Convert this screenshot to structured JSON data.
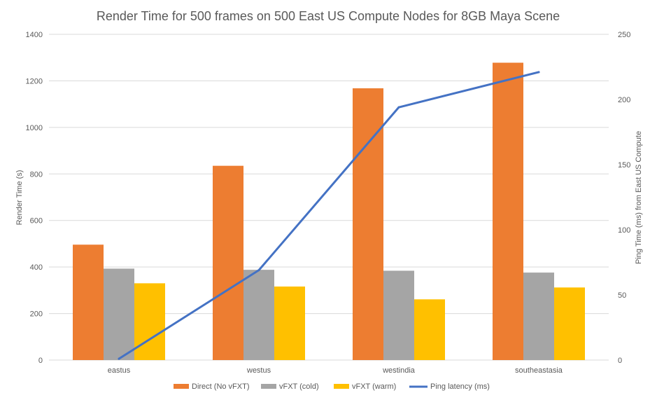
{
  "chart_data": {
    "type": "bar",
    "title": "Render Time for 500 frames on 500 East US Compute Nodes for 8GB Maya Scene",
    "xlabel": "",
    "ylabel": "Render Time (s)",
    "y2label": "Ping Time (ms) from East US Compute",
    "categories": [
      "eastus",
      "westus",
      "westindia",
      "southeastasia"
    ],
    "ylim": [
      0,
      1400
    ],
    "y2lim": [
      0,
      250
    ],
    "yticks": [
      "0",
      "200",
      "400",
      "600",
      "800",
      "1000",
      "1200",
      "1400"
    ],
    "y2ticks": [
      "0",
      "50",
      "100",
      "150",
      "200",
      "250"
    ],
    "grid": true,
    "legend_position": "bottom",
    "series": [
      {
        "name": "Direct (No vFXT)",
        "kind": "bar",
        "axis": "left",
        "color": "#ed7d31",
        "values": [
          496,
          835,
          1168,
          1278
        ]
      },
      {
        "name": "vFXT (cold)",
        "kind": "bar",
        "axis": "left",
        "color": "#a5a5a5",
        "values": [
          393,
          388,
          384,
          376
        ]
      },
      {
        "name": "vFXT (warm)",
        "kind": "bar",
        "axis": "left",
        "color": "#ffc000",
        "values": [
          330,
          316,
          261,
          312
        ]
      },
      {
        "name": "Ping latency (ms)",
        "kind": "line",
        "axis": "right",
        "color": "#4472c4",
        "values": [
          1,
          69,
          194,
          221
        ]
      }
    ]
  }
}
